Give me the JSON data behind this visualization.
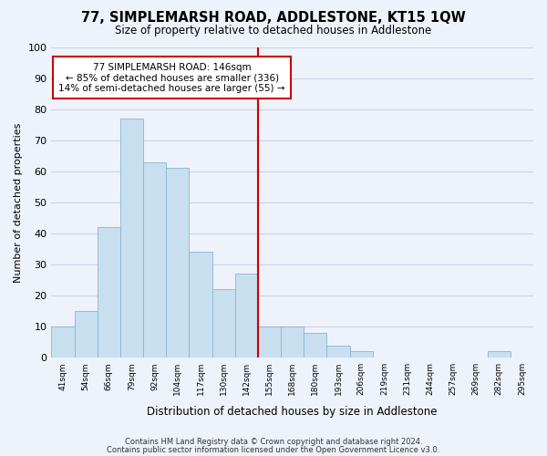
{
  "title": "77, SIMPLEMARSH ROAD, ADDLESTONE, KT15 1QW",
  "subtitle": "Size of property relative to detached houses in Addlestone",
  "xlabel": "Distribution of detached houses by size in Addlestone",
  "ylabel": "Number of detached properties",
  "footer_line1": "Contains HM Land Registry data © Crown copyright and database right 2024.",
  "footer_line2": "Contains public sector information licensed under the Open Government Licence v3.0.",
  "bin_labels": [
    "41sqm",
    "54sqm",
    "66sqm",
    "79sqm",
    "92sqm",
    "104sqm",
    "117sqm",
    "130sqm",
    "142sqm",
    "155sqm",
    "168sqm",
    "180sqm",
    "193sqm",
    "206sqm",
    "219sqm",
    "231sqm",
    "244sqm",
    "257sqm",
    "269sqm",
    "282sqm",
    "295sqm"
  ],
  "bar_values": [
    10,
    15,
    42,
    77,
    63,
    61,
    34,
    22,
    27,
    10,
    10,
    8,
    4,
    2,
    0,
    0,
    0,
    0,
    0,
    2,
    0
  ],
  "bar_color": "#c8dff0",
  "bar_edge_color": "#8ab4d4",
  "highlight_bar_index": 8,
  "highlight_line_color": "#cc0000",
  "annotation_title": "77 SIMPLEMARSH ROAD: 146sqm",
  "annotation_line1": "← 85% of detached houses are smaller (336)",
  "annotation_line2": "14% of semi-detached houses are larger (55) →",
  "annotation_box_color": "#ffffff",
  "annotation_box_edge": "#cc0000",
  "ylim": [
    0,
    100
  ],
  "yticks": [
    0,
    10,
    20,
    30,
    40,
    50,
    60,
    70,
    80,
    90,
    100
  ],
  "background_color": "#eef2fb"
}
